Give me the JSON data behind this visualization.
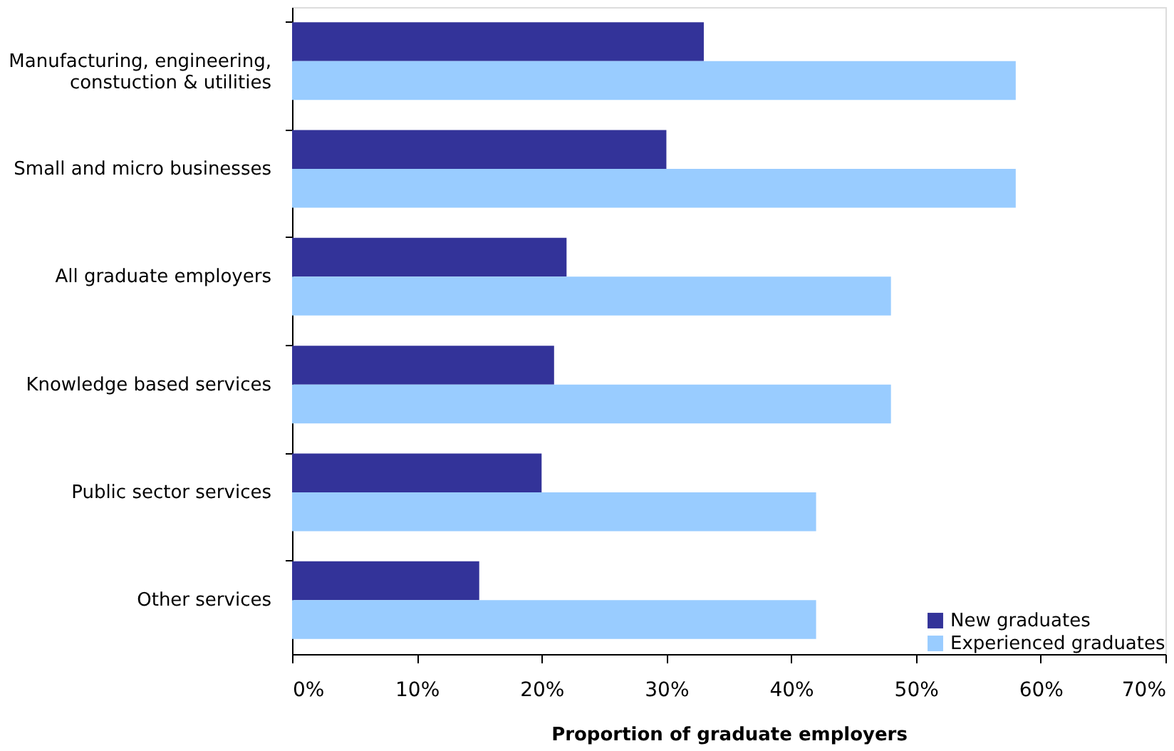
{
  "chart_data": {
    "type": "bar",
    "orientation": "horizontal",
    "xlabel": "Proportion of graduate employers",
    "categories": [
      "Manufacturing, engineering,\nconstuction & utilities",
      "Small and micro businesses",
      "All graduate employers",
      "Knowledge based services",
      "Public sector services",
      "Other services"
    ],
    "series": [
      {
        "name": "New graduates",
        "color": "#333399",
        "values": [
          33,
          30,
          22,
          21,
          20,
          15
        ]
      },
      {
        "name": "Experienced graduates",
        "color": "#99ccff",
        "values": [
          58,
          58,
          48,
          48,
          42,
          42
        ]
      }
    ],
    "xlim": [
      0,
      70
    ],
    "xticks": [
      {
        "value": 0,
        "label": "0%"
      },
      {
        "value": 10,
        "label": "10%"
      },
      {
        "value": 20,
        "label": "20%"
      },
      {
        "value": 30,
        "label": "30%"
      },
      {
        "value": 40,
        "label": "40%"
      },
      {
        "value": 50,
        "label": "50%"
      },
      {
        "value": 60,
        "label": "60%"
      },
      {
        "value": 70,
        "label": "70%"
      }
    ],
    "grid": false,
    "legend": "bottom right"
  }
}
